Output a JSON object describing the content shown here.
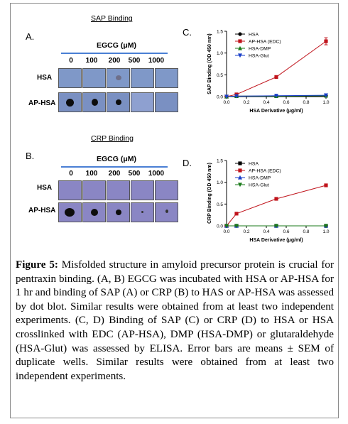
{
  "panelA": {
    "letter": "A.",
    "title": "SAP Binding",
    "egcg": "EGCG (μM)",
    "doses": [
      "0",
      "100",
      "200",
      "500",
      "1000"
    ],
    "rows": [
      "HSA",
      "AP-HSA"
    ]
  },
  "panelB": {
    "letter": "B.",
    "title": "CRP Binding",
    "egcg": "EGCG (μM)",
    "doses": [
      "0",
      "100",
      "200",
      "500",
      "1000"
    ],
    "rows": [
      "HSA",
      "AP-HSA"
    ]
  },
  "panelC": {
    "letter": "C."
  },
  "panelD": {
    "letter": "D."
  },
  "chart_data": [
    {
      "type": "line",
      "ylabel": "SAP Binding (OD 450 nm)",
      "xlabel": "HSA Derivative (μg/ml)",
      "xlim": [
        0,
        1.0
      ],
      "ylim": [
        0,
        1.5
      ],
      "xticks": [
        "0.0",
        "0.2",
        "0.4",
        "0.6",
        "0.8",
        "1.0"
      ],
      "yticks": [
        "0.0",
        "0.5",
        "1.0",
        "1.5"
      ],
      "x": [
        0,
        0.1,
        0.5,
        1.0
      ],
      "legend_position": "top-left",
      "series": [
        {
          "name": "HSA",
          "marker": "circle",
          "color": "#000000",
          "values": [
            0.0,
            0.01,
            0.01,
            0.02
          ]
        },
        {
          "name": "AP-HSA (EDC)",
          "marker": "square",
          "color": "#c0141c",
          "values": [
            0.0,
            0.05,
            0.45,
            1.27
          ]
        },
        {
          "name": "HSA-DMP",
          "marker": "triangle-up",
          "color": "#1a7a1a",
          "values": [
            0.0,
            0.01,
            0.01,
            0.02
          ]
        },
        {
          "name": "HSA-Glut",
          "marker": "triangle-down",
          "color": "#1a3fc8",
          "values": [
            0.0,
            0.01,
            0.02,
            0.03
          ]
        }
      ]
    },
    {
      "type": "line",
      "ylabel": "CRP Binding (OD 450 nm)",
      "xlabel": "HSA Derivative (μg/ml)",
      "xlim": [
        0,
        1.0
      ],
      "ylim": [
        0,
        1.5
      ],
      "xticks": [
        "0.0",
        "0.2",
        "0.4",
        "0.6",
        "0.8",
        "1.0"
      ],
      "yticks": [
        "0.0",
        "0.5",
        "1.0",
        "1.5"
      ],
      "x": [
        0,
        0.1,
        0.5,
        1.0
      ],
      "legend_position": "top-left",
      "series": [
        {
          "name": "HSA",
          "marker": "square",
          "color": "#000000",
          "values": [
            0.0,
            0.0,
            0.0,
            0.0
          ]
        },
        {
          "name": "AP-HSA (EDC)",
          "marker": "square",
          "color": "#c0141c",
          "values": [
            0.0,
            0.28,
            0.62,
            0.93
          ]
        },
        {
          "name": "HSA-DMP",
          "marker": "triangle-up",
          "color": "#1a3fc8",
          "values": [
            0.0,
            0.0,
            0.0,
            0.0
          ]
        },
        {
          "name": "HSA-Glut",
          "marker": "triangle-down",
          "color": "#1a7a1a",
          "values": [
            0.0,
            0.0,
            0.0,
            0.0
          ]
        }
      ]
    }
  ],
  "caption": {
    "label": "Figure 5:",
    "text": "Misfolded structure in amyloid precursor protein is crucial for pentraxin binding. (A, B) EGCG was incubated with HSA or AP-HSA for 1 hr and binding of SAP (A) or CRP (B) to HAS or AP-HSA was assessed by dot blot. Similar results were obtained from at least two independent experiments. (C, D) Binding of SAP (C) or CRP (D) to HSA or HSA crosslinked with EDC (AP-HSA), DMP (HSA-DMP) or glutaraldehyde (HSA-Glut) was assessed by ELISA. Error bars are means ± SEM of duplicate wells. Similar results were obtained from at least two independent experiments."
  }
}
